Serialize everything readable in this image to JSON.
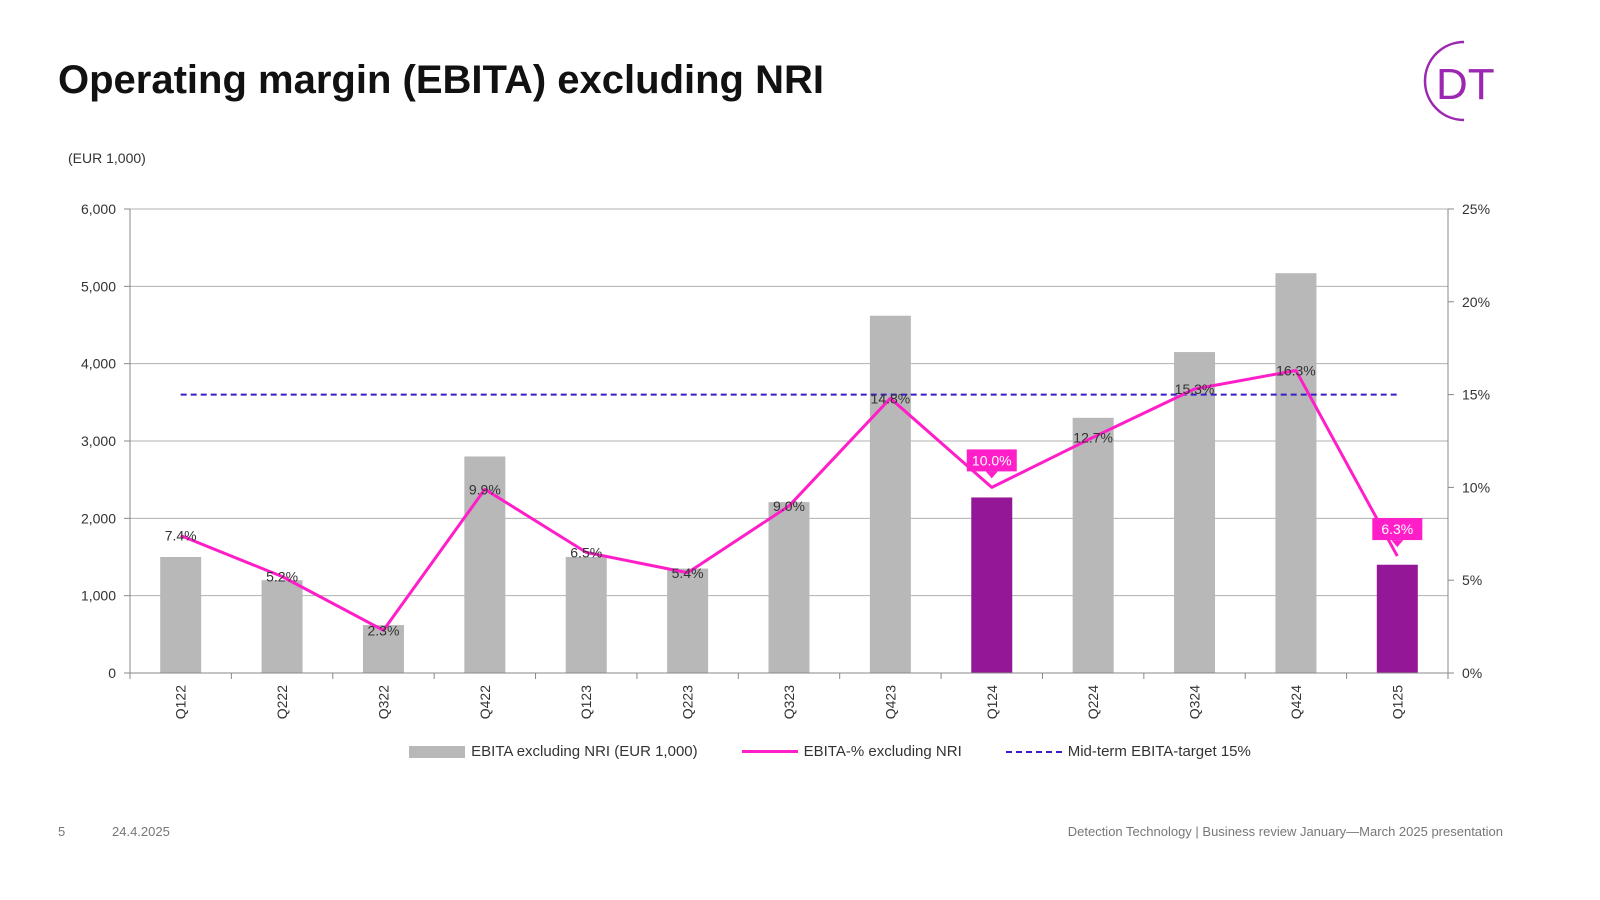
{
  "title": "Operating margin (EBITA) excluding NRI",
  "logo_text": "DT",
  "unit_label": "(EUR 1,000)",
  "colors": {
    "bar": "#b8b8b8",
    "bar_highlight": "#931797",
    "line": "#ff1ec8",
    "target_line": "#3a1dc8",
    "logo": "#9c27b0"
  },
  "chart_data": {
    "type": "bar",
    "title": "Operating margin (EBITA) excluding NRI",
    "ylabel": "(EUR 1,000)",
    "categories": [
      "Q122",
      "Q222",
      "Q322",
      "Q422",
      "Q123",
      "Q223",
      "Q323",
      "Q423",
      "Q124",
      "Q224",
      "Q324",
      "Q424",
      "Q125"
    ],
    "ylim": [
      0,
      6000
    ],
    "y_ticks": [
      "0",
      "1,000",
      "2,000",
      "3,000",
      "4,000",
      "5,000",
      "6,000"
    ],
    "y_tick_values": [
      0,
      1000,
      2000,
      3000,
      4000,
      5000,
      6000
    ],
    "y2lim": [
      0,
      25
    ],
    "y2_ticks": [
      "0%",
      "5%",
      "10%",
      "15%",
      "20%",
      "25%"
    ],
    "y2_tick_values": [
      0,
      5,
      10,
      15,
      20,
      25
    ],
    "grid": true,
    "legend_position": "bottom",
    "highlight_categories": [
      "Q124",
      "Q125"
    ],
    "series": [
      {
        "name": "EBITA excluding NRI (EUR 1,000)",
        "type": "bar",
        "axis": "left",
        "values": [
          1500,
          1200,
          620,
          2800,
          1500,
          1350,
          2210,
          4620,
          2270,
          3300,
          4150,
          5170,
          1400
        ]
      },
      {
        "name": "EBITA-% excluding NRI",
        "type": "line",
        "axis": "right",
        "values": [
          7.4,
          5.2,
          2.3,
          9.9,
          6.5,
          5.4,
          9.0,
          14.8,
          10.0,
          12.7,
          15.3,
          16.3,
          6.3
        ],
        "labels": [
          "7.4%",
          "5.2%",
          "2.3%",
          "9.9%",
          "6.5%",
          "5.4%",
          "9.0%",
          "14.8%",
          "10.0%",
          "12.7%",
          "15.3%",
          "16.3%",
          "6.3%"
        ]
      },
      {
        "name": "Mid-term EBITA-target 15%",
        "type": "line",
        "style": "dashed",
        "axis": "right",
        "value": 15
      }
    ]
  },
  "footer": {
    "page": "5",
    "date": "24.4.2025",
    "source": "Detection Technology | Business review January—March 2025 presentation"
  }
}
